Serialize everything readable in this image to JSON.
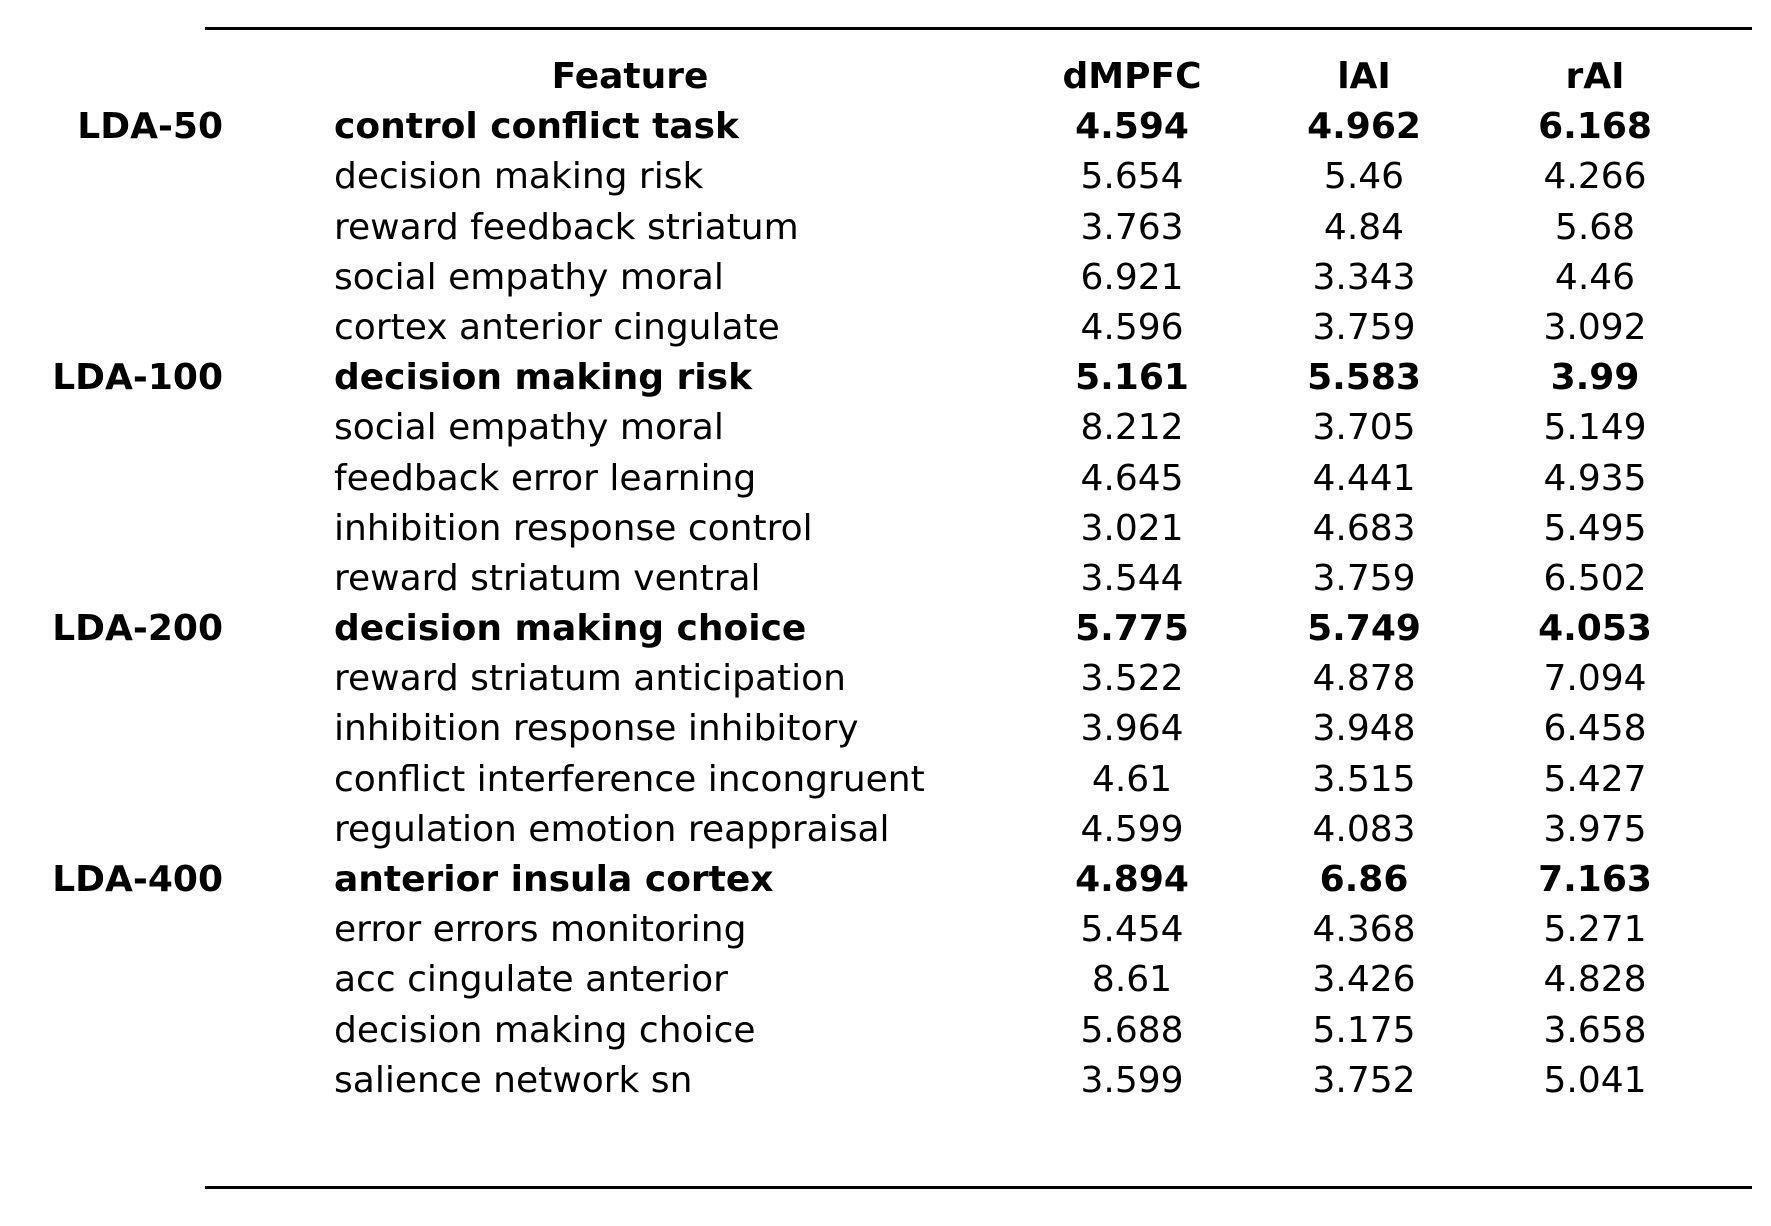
{
  "headers": {
    "feature": "Feature",
    "dmpfc": "dMPFC",
    "lai": "lAI",
    "rai": "rAI"
  },
  "groups": [
    {
      "label": "LDA-50",
      "rows": [
        {
          "feature": "control conflict task",
          "dmpfc": "4.594",
          "lai": "4.962",
          "rai": "6.168",
          "bold": true
        },
        {
          "feature": "decision making risk",
          "dmpfc": "5.654",
          "lai": "5.46",
          "rai": "4.266",
          "bold": false
        },
        {
          "feature": "reward feedback striatum",
          "dmpfc": "3.763",
          "lai": "4.84",
          "rai": "5.68",
          "bold": false
        },
        {
          "feature": "social empathy moral",
          "dmpfc": "6.921",
          "lai": "3.343",
          "rai": "4.46",
          "bold": false
        },
        {
          "feature": "cortex anterior cingulate",
          "dmpfc": "4.596",
          "lai": "3.759",
          "rai": "3.092",
          "bold": false
        }
      ]
    },
    {
      "label": "LDA-100",
      "rows": [
        {
          "feature": "decision making risk",
          "dmpfc": "5.161",
          "lai": "5.583",
          "rai": "3.99",
          "bold": true
        },
        {
          "feature": "social empathy moral",
          "dmpfc": "8.212",
          "lai": "3.705",
          "rai": "5.149",
          "bold": false
        },
        {
          "feature": "feedback error learning",
          "dmpfc": "4.645",
          "lai": "4.441",
          "rai": "4.935",
          "bold": false
        },
        {
          "feature": "inhibition response control",
          "dmpfc": "3.021",
          "lai": "4.683",
          "rai": "5.495",
          "bold": false
        },
        {
          "feature": "reward striatum ventral",
          "dmpfc": "3.544",
          "lai": "3.759",
          "rai": "6.502",
          "bold": false
        }
      ]
    },
    {
      "label": "LDA-200",
      "rows": [
        {
          "feature": "decision making choice",
          "dmpfc": "5.775",
          "lai": "5.749",
          "rai": "4.053",
          "bold": true
        },
        {
          "feature": "reward striatum anticipation",
          "dmpfc": "3.522",
          "lai": "4.878",
          "rai": "7.094",
          "bold": false
        },
        {
          "feature": "inhibition response inhibitory",
          "dmpfc": "3.964",
          "lai": "3.948",
          "rai": "6.458",
          "bold": false
        },
        {
          "feature": "conflict interference incongruent",
          "dmpfc": "4.61",
          "lai": "3.515",
          "rai": "5.427",
          "bold": false
        },
        {
          "feature": "regulation emotion reappraisal",
          "dmpfc": "4.599",
          "lai": "4.083",
          "rai": "3.975",
          "bold": false
        }
      ]
    },
    {
      "label": "LDA-400",
      "rows": [
        {
          "feature": "anterior insula cortex",
          "dmpfc": "4.894",
          "lai": "6.86",
          "rai": "7.163",
          "bold": true
        },
        {
          "feature": "error errors monitoring",
          "dmpfc": "5.454",
          "lai": "4.368",
          "rai": "5.271",
          "bold": false
        },
        {
          "feature": "acc cingulate anterior",
          "dmpfc": "8.61",
          "lai": "3.426",
          "rai": "4.828",
          "bold": false
        },
        {
          "feature": "decision making choice",
          "dmpfc": "5.688",
          "lai": "5.175",
          "rai": "3.658",
          "bold": false
        },
        {
          "feature": "salience network sn",
          "dmpfc": "3.599",
          "lai": "3.752",
          "rai": "5.041",
          "bold": false
        }
      ]
    }
  ]
}
